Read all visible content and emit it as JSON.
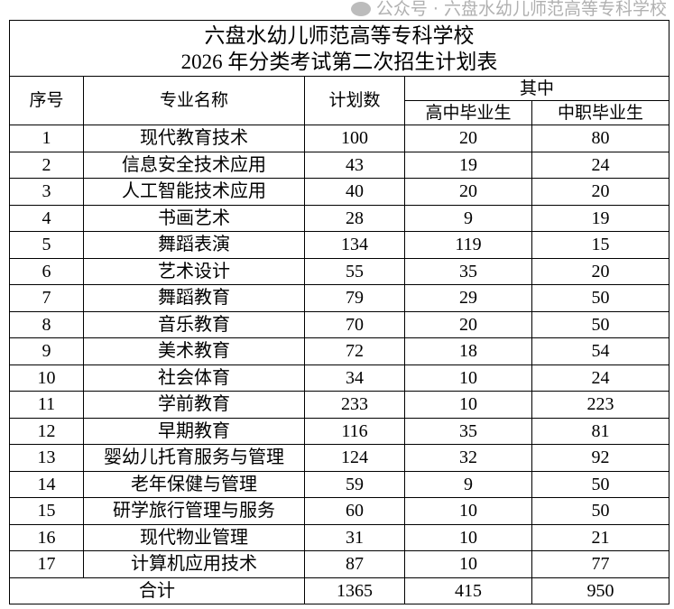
{
  "title": {
    "line1": "六盘水幼儿师范高等专科学校",
    "line2": "2026 年分类考试第二次招生计划表"
  },
  "headers": {
    "index": "序号",
    "major": "专业名称",
    "plan": "计划数",
    "of_which": "其中",
    "high_school": "高中毕业生",
    "vocational": "中职毕业生"
  },
  "rows": [
    {
      "no": "1",
      "major": "现代教育技术",
      "plan": "100",
      "hs": "20",
      "voc": "80"
    },
    {
      "no": "2",
      "major": "信息安全技术应用",
      "plan": "43",
      "hs": "19",
      "voc": "24"
    },
    {
      "no": "3",
      "major": "人工智能技术应用",
      "plan": "40",
      "hs": "20",
      "voc": "20"
    },
    {
      "no": "4",
      "major": "书画艺术",
      "plan": "28",
      "hs": "9",
      "voc": "19"
    },
    {
      "no": "5",
      "major": "舞蹈表演",
      "plan": "134",
      "hs": "119",
      "voc": "15"
    },
    {
      "no": "6",
      "major": "艺术设计",
      "plan": "55",
      "hs": "35",
      "voc": "20"
    },
    {
      "no": "7",
      "major": "舞蹈教育",
      "plan": "79",
      "hs": "29",
      "voc": "50"
    },
    {
      "no": "8",
      "major": "音乐教育",
      "plan": "70",
      "hs": "20",
      "voc": "50"
    },
    {
      "no": "9",
      "major": "美术教育",
      "plan": "72",
      "hs": "18",
      "voc": "54"
    },
    {
      "no": "10",
      "major": "社会体育",
      "plan": "34",
      "hs": "10",
      "voc": "24"
    },
    {
      "no": "11",
      "major": "学前教育",
      "plan": "233",
      "hs": "10",
      "voc": "223"
    },
    {
      "no": "12",
      "major": "早期教育",
      "plan": "116",
      "hs": "35",
      "voc": "81"
    },
    {
      "no": "13",
      "major": "婴幼儿托育服务与管理",
      "plan": "124",
      "hs": "32",
      "voc": "92"
    },
    {
      "no": "14",
      "major": "老年保健与管理",
      "plan": "59",
      "hs": "9",
      "voc": "50"
    },
    {
      "no": "15",
      "major": "研学旅行管理与服务",
      "plan": "60",
      "hs": "10",
      "voc": "50"
    },
    {
      "no": "16",
      "major": "现代物业管理",
      "plan": "31",
      "hs": "10",
      "voc": "21"
    },
    {
      "no": "17",
      "major": "计算机应用技术",
      "plan": "87",
      "hs": "10",
      "voc": "77"
    }
  ],
  "total": {
    "label": "合计",
    "plan": "1365",
    "hs": "415",
    "voc": "950"
  },
  "watermark": "公众号 · 六盘水幼儿师范高等专科学校"
}
